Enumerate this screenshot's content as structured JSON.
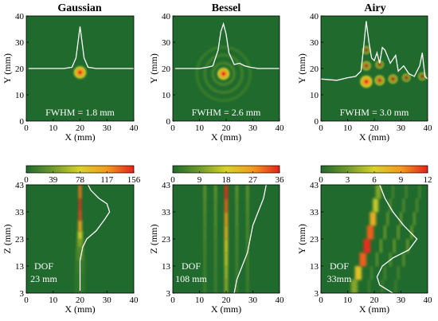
{
  "figure": {
    "columns": [
      "Gaussian",
      "Bessel",
      "Airy"
    ]
  },
  "chart_data": [
    {
      "type": "heatmap",
      "panel": "gaussian-transverse",
      "title": "Gaussian",
      "xlabel": "X (mm)",
      "ylabel": "Y (mm)",
      "xlim": [
        0,
        40
      ],
      "ylim": [
        0,
        40
      ],
      "xticks": [
        0,
        10,
        20,
        30,
        40
      ],
      "yticks": [
        0,
        10,
        20,
        30,
        40
      ],
      "annotation": "FWHM = 1.8 mm",
      "spots": [
        {
          "x": 20,
          "y": 18.5,
          "intensity": 1.0
        }
      ],
      "rings": [],
      "profile": {
        "baseline": 20,
        "x": [
          0,
          14,
          17,
          18.5,
          19.5,
          20,
          20.5,
          21.5,
          23,
          26,
          40
        ],
        "y": [
          20,
          20,
          20.5,
          24,
          32,
          36,
          32,
          24,
          20.5,
          20,
          20
        ]
      }
    },
    {
      "type": "heatmap",
      "panel": "bessel-transverse",
      "title": "Bessel",
      "xlabel": "X (mm)",
      "ylabel": "Y (mm)",
      "xlim": [
        0,
        40
      ],
      "ylim": [
        0,
        40
      ],
      "xticks": [
        0,
        10,
        20,
        30,
        40
      ],
      "yticks": [
        0,
        10,
        20,
        30,
        40
      ],
      "annotation": "FWHM = 2.6 mm",
      "spots": [
        {
          "x": 19,
          "y": 18,
          "intensity": 1.0
        }
      ],
      "rings": [
        {
          "x": 19,
          "y": 18,
          "radii": [
            4,
            7,
            10
          ]
        }
      ],
      "profile": {
        "baseline": 20,
        "x": [
          0,
          10,
          13,
          15,
          17,
          18,
          19,
          20,
          21,
          23,
          25,
          27,
          29,
          32,
          40
        ],
        "y": [
          20,
          20,
          20.5,
          21,
          27,
          34,
          37,
          33,
          26,
          21.5,
          22,
          21,
          20.5,
          20,
          20
        ]
      }
    },
    {
      "type": "heatmap",
      "panel": "airy-transverse",
      "title": "Airy",
      "xlabel": "X (mm)",
      "ylabel": "Y (mm)",
      "xlim": [
        0,
        40
      ],
      "ylim": [
        0,
        40
      ],
      "xticks": [
        0,
        10,
        20,
        30,
        40
      ],
      "yticks": [
        0,
        10,
        20,
        30,
        40
      ],
      "annotation": "FWHM = 3.0 mm",
      "spots": [
        {
          "x": 17,
          "y": 15,
          "intensity": 1.0
        },
        {
          "x": 22,
          "y": 15.5,
          "intensity": 0.65
        },
        {
          "x": 27,
          "y": 16,
          "intensity": 0.5
        },
        {
          "x": 17,
          "y": 21,
          "intensity": 0.5
        },
        {
          "x": 32,
          "y": 16.5,
          "intensity": 0.35
        },
        {
          "x": 22,
          "y": 21.5,
          "intensity": 0.35
        },
        {
          "x": 17,
          "y": 27,
          "intensity": 0.3
        },
        {
          "x": 38,
          "y": 17,
          "intensity": 0.3
        }
      ],
      "rings": [],
      "profile": {
        "baseline": 16,
        "x": [
          0,
          6,
          10,
          13,
          15,
          16,
          17,
          18,
          19,
          20,
          21,
          22,
          23,
          24,
          26,
          28,
          29,
          31,
          33,
          35,
          37,
          38,
          39,
          40
        ],
        "y": [
          16,
          15.5,
          16.5,
          17,
          19,
          28,
          38,
          30,
          24,
          23,
          26,
          22,
          28,
          27,
          22,
          25,
          19,
          21,
          18,
          17,
          21,
          26,
          17,
          16
        ]
      }
    },
    {
      "type": "heatmap",
      "panel": "gaussian-longitudinal",
      "xlabel": "X (mm)",
      "ylabel": "Z (mm)",
      "xlim": [
        0,
        40
      ],
      "ylim": [
        3,
        43
      ],
      "xticks": [
        0,
        10,
        20,
        30,
        40
      ],
      "yticks": [
        3,
        13,
        23,
        33,
        43
      ],
      "colorbar": {
        "ticks": [
          0,
          39,
          78,
          117,
          156
        ],
        "min": 0,
        "max": 156
      },
      "annotation": [
        "DOF",
        "23 mm"
      ],
      "beam": {
        "z": [
          3,
          10,
          15,
          20,
          23,
          26,
          30,
          34,
          38,
          43
        ],
        "x": [
          20,
          20,
          20,
          20,
          20,
          20,
          20,
          20,
          20,
          20
        ],
        "w": [
          4,
          4,
          3.5,
          2.5,
          2,
          1.5,
          1.2,
          1.0,
          1.0,
          1.2
        ],
        "intensity": [
          0.04,
          0.06,
          0.1,
          0.2,
          0.35,
          0.6,
          0.85,
          1.0,
          0.95,
          0.7
        ]
      },
      "profile": {
        "z": [
          3,
          10,
          15,
          20,
          23,
          26,
          30,
          33,
          36,
          38,
          41,
          43
        ],
        "x": [
          20,
          20,
          20,
          21,
          22.5,
          26,
          29,
          31,
          30,
          27,
          24,
          23
        ]
      }
    },
    {
      "type": "heatmap",
      "panel": "bessel-longitudinal",
      "xlabel": "X (mm)",
      "ylabel": "Z (mm)",
      "xlim": [
        0,
        40
      ],
      "ylim": [
        3,
        43
      ],
      "xticks": [
        0,
        10,
        20,
        30,
        40
      ],
      "yticks": [
        3,
        13,
        23,
        33,
        43
      ],
      "colorbar": {
        "ticks": [
          0,
          9,
          18,
          27,
          36
        ],
        "min": 0,
        "max": 36
      },
      "annotation": [
        "DOF",
        "108 mm"
      ],
      "beam": {
        "z": [
          3,
          8,
          13,
          18,
          23,
          28,
          33,
          38,
          43
        ],
        "x": [
          20,
          20,
          20,
          20,
          20,
          20,
          20,
          20,
          20
        ],
        "w": [
          1.2,
          1.2,
          1.2,
          1.2,
          1.2,
          1.2,
          1.2,
          1.2,
          1.2
        ],
        "intensity": [
          0.3,
          0.35,
          0.4,
          0.5,
          0.6,
          0.7,
          0.8,
          0.95,
          1.0
        ]
      },
      "side_lobes": [
        {
          "dx": 4
        },
        {
          "dx": -4
        },
        {
          "dx": 8
        },
        {
          "dx": -8
        }
      ],
      "profile": {
        "z": [
          3,
          8,
          13,
          18,
          23,
          28,
          33,
          38,
          43
        ],
        "x": [
          23,
          24,
          26,
          28,
          29,
          30,
          32,
          34,
          35
        ]
      }
    },
    {
      "type": "heatmap",
      "panel": "airy-longitudinal",
      "xlabel": "X (mm)",
      "ylabel": "Y (mm)",
      "xlim": [
        0,
        40
      ],
      "ylim": [
        3,
        43
      ],
      "xticks": [
        0,
        10,
        20,
        30,
        40
      ],
      "yticks": [
        3,
        13,
        23,
        33,
        43
      ],
      "colorbar": {
        "ticks": [
          0,
          3,
          6,
          9,
          12
        ],
        "min": 0,
        "max": 12
      },
      "annotation": [
        "DOF",
        "33mm"
      ],
      "beam": {
        "z": [
          3,
          8,
          13,
          18,
          23,
          28,
          33,
          38,
          43
        ],
        "x": [
          12,
          13,
          15,
          16.5,
          18,
          19,
          20,
          21,
          22
        ],
        "w": [
          2.5,
          2.5,
          2.5,
          2.6,
          2.6,
          2.4,
          2.2,
          2.0,
          2.0
        ],
        "intensity": [
          0.2,
          0.4,
          0.75,
          1.0,
          0.95,
          0.8,
          0.55,
          0.35,
          0.25
        ]
      },
      "side_lobes": [
        {
          "dx": 6
        },
        {
          "dx": 11
        },
        {
          "dx": 16
        }
      ],
      "profile": {
        "z": [
          3,
          6,
          9,
          13,
          16,
          19,
          23,
          28,
          33,
          38,
          43
        ],
        "x": [
          27,
          22,
          21,
          23,
          27,
          33,
          36,
          31,
          27,
          24,
          22
        ]
      }
    }
  ]
}
